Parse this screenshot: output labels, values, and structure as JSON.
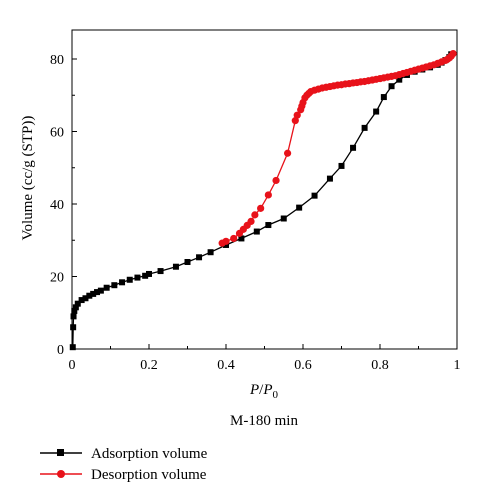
{
  "chart_data": {
    "type": "line",
    "xlabel_main": "P",
    "xlabel_sep": "/",
    "xlabel_base": "P",
    "xlabel_sub": "0",
    "ylabel": "Volume (cc/g (STP))",
    "subtitle": "M-180 min",
    "xlim": [
      0,
      1
    ],
    "ylim": [
      0,
      88
    ],
    "xticks": [
      "0",
      "0.2",
      "0.4",
      "0.6",
      "0.8",
      "1"
    ],
    "xtick_values": [
      0,
      0.2,
      0.4,
      0.6,
      0.8,
      1
    ],
    "yticks": [
      "0",
      "20",
      "40",
      "60",
      "80"
    ],
    "ytick_values": [
      0,
      20,
      40,
      60,
      80
    ],
    "grid": false,
    "legend_position": "bottom-left, below plot",
    "series": [
      {
        "name": "Adsorption volume",
        "color": "#000000",
        "marker": "square",
        "points": [
          [
            0.002,
            0.5
          ],
          [
            0.003,
            6
          ],
          [
            0.004,
            9
          ],
          [
            0.006,
            10.5
          ],
          [
            0.01,
            11.5
          ],
          [
            0.015,
            12.5
          ],
          [
            0.025,
            13.5
          ],
          [
            0.035,
            14
          ],
          [
            0.045,
            14.7
          ],
          [
            0.055,
            15.2
          ],
          [
            0.065,
            15.7
          ],
          [
            0.075,
            16.1
          ],
          [
            0.09,
            16.9
          ],
          [
            0.11,
            17.6
          ],
          [
            0.13,
            18.4
          ],
          [
            0.15,
            19.1
          ],
          [
            0.17,
            19.7
          ],
          [
            0.19,
            20.2
          ],
          [
            0.2,
            20.7
          ],
          [
            0.23,
            21.5
          ],
          [
            0.27,
            22.7
          ],
          [
            0.3,
            24
          ],
          [
            0.33,
            25.3
          ],
          [
            0.36,
            26.7
          ],
          [
            0.4,
            28.7
          ],
          [
            0.44,
            30.5
          ],
          [
            0.48,
            32.4
          ],
          [
            0.51,
            34.2
          ],
          [
            0.55,
            36
          ],
          [
            0.59,
            39
          ],
          [
            0.63,
            42.3
          ],
          [
            0.67,
            47
          ],
          [
            0.7,
            50.5
          ],
          [
            0.73,
            55.5
          ],
          [
            0.76,
            61
          ],
          [
            0.79,
            65.5
          ],
          [
            0.81,
            69.5
          ],
          [
            0.83,
            72.5
          ],
          [
            0.85,
            74.3
          ],
          [
            0.87,
            75.6
          ],
          [
            0.89,
            76.5
          ],
          [
            0.91,
            77.1
          ],
          [
            0.93,
            77.7
          ],
          [
            0.95,
            78.4
          ],
          [
            0.96,
            79
          ],
          [
            0.97,
            79.7
          ],
          [
            0.98,
            80.5
          ],
          [
            0.985,
            81.3
          ]
        ]
      },
      {
        "name": "Desorption volume",
        "color": "#e8121a",
        "marker": "circle",
        "points": [
          [
            0.99,
            81.5
          ],
          [
            0.985,
            80.8
          ],
          [
            0.98,
            80.3
          ],
          [
            0.975,
            79.9
          ],
          [
            0.97,
            79.6
          ],
          [
            0.96,
            79.2
          ],
          [
            0.95,
            78.8
          ],
          [
            0.94,
            78.4
          ],
          [
            0.93,
            78.1
          ],
          [
            0.92,
            77.8
          ],
          [
            0.91,
            77.5
          ],
          [
            0.9,
            77.2
          ],
          [
            0.89,
            76.9
          ],
          [
            0.88,
            76.6
          ],
          [
            0.87,
            76.3
          ],
          [
            0.86,
            76
          ],
          [
            0.85,
            75.7
          ],
          [
            0.84,
            75.4
          ],
          [
            0.83,
            75.2
          ],
          [
            0.82,
            75
          ],
          [
            0.81,
            74.8
          ],
          [
            0.8,
            74.6
          ],
          [
            0.79,
            74.4
          ],
          [
            0.78,
            74.2
          ],
          [
            0.77,
            74
          ],
          [
            0.76,
            73.8
          ],
          [
            0.75,
            73.7
          ],
          [
            0.74,
            73.5
          ],
          [
            0.73,
            73.4
          ],
          [
            0.72,
            73.2
          ],
          [
            0.71,
            73.1
          ],
          [
            0.7,
            72.9
          ],
          [
            0.69,
            72.8
          ],
          [
            0.68,
            72.6
          ],
          [
            0.67,
            72.4
          ],
          [
            0.66,
            72.2
          ],
          [
            0.65,
            72
          ],
          [
            0.64,
            71.7
          ],
          [
            0.63,
            71.4
          ],
          [
            0.62,
            71
          ],
          [
            0.615,
            70.5
          ],
          [
            0.61,
            70
          ],
          [
            0.605,
            69.3
          ],
          [
            0.6,
            68
          ],
          [
            0.597,
            67
          ],
          [
            0.594,
            66
          ],
          [
            0.585,
            64.5
          ],
          [
            0.58,
            63
          ],
          [
            0.56,
            54
          ],
          [
            0.53,
            46.5
          ],
          [
            0.51,
            42.5
          ],
          [
            0.49,
            38.8
          ],
          [
            0.475,
            37
          ],
          [
            0.465,
            35.2
          ],
          [
            0.455,
            34.1
          ],
          [
            0.445,
            33
          ],
          [
            0.435,
            31.9
          ],
          [
            0.42,
            30.5
          ],
          [
            0.4,
            29.7
          ],
          [
            0.39,
            29.2
          ]
        ]
      }
    ]
  }
}
